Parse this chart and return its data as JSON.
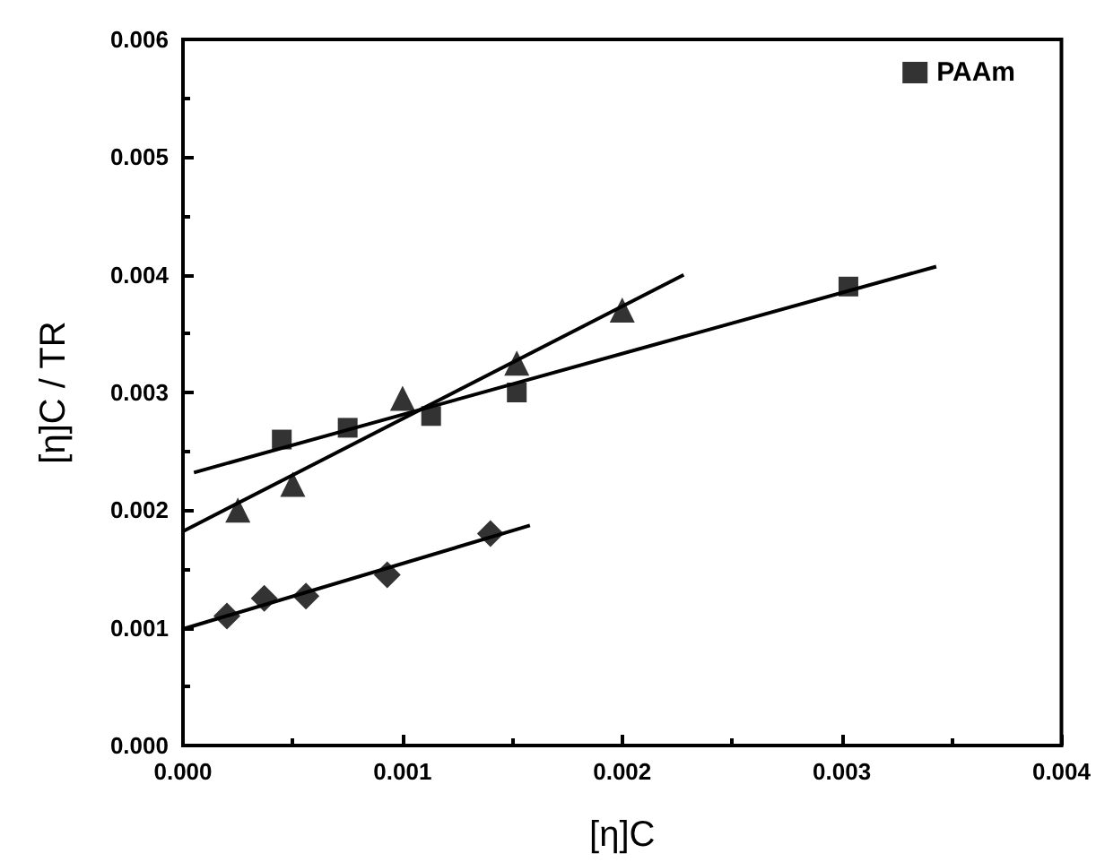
{
  "chart_data": {
    "type": "scatter",
    "xlabel": "[η]C",
    "ylabel": "[η]C / TR",
    "xlim": [
      0,
      0.004
    ],
    "ylim": [
      0,
      0.006
    ],
    "xticks": [
      {
        "value": 0,
        "label": "0.000"
      },
      {
        "value": 0.001,
        "label": "0.001"
      },
      {
        "value": 0.002,
        "label": "0.002"
      },
      {
        "value": 0.003,
        "label": "0.003"
      },
      {
        "value": 0.004,
        "label": "0.004"
      }
    ],
    "yticks": [
      {
        "value": 0,
        "label": "0.000"
      },
      {
        "value": 0.001,
        "label": "0.001"
      },
      {
        "value": 0.002,
        "label": "0.002"
      },
      {
        "value": 0.003,
        "label": "0.003"
      },
      {
        "value": 0.004,
        "label": "0.004"
      },
      {
        "value": 0.005,
        "label": "0.005"
      },
      {
        "value": 0.006,
        "label": "0.006"
      }
    ],
    "grid": false,
    "legend": "top right",
    "series": [
      {
        "name": "PAAm",
        "type": "scatter",
        "marker": "square",
        "color": "#000000",
        "x": [
          0.00045,
          0.00075,
          0.00113,
          0.00152,
          0.00303
        ],
        "values": [
          0.0026,
          0.0027,
          0.0028,
          0.003,
          0.0039
        ]
      },
      {
        "type": "scatter",
        "marker": "diamond",
        "color": "#000000",
        "x": [
          0.0002,
          0.00037,
          0.00056,
          0.00093,
          0.0014
        ],
        "values": [
          0.0011,
          0.00125,
          0.00127,
          0.00145,
          0.0018
        ]
      },
      {
        "type": "scatter",
        "marker": "triangle",
        "color": "#000000",
        "x": [
          0.00025,
          0.0005,
          0.001,
          0.00152,
          0.002
        ],
        "values": [
          0.002,
          0.00222,
          0.00295,
          0.00325,
          0.0037
        ]
      },
      {
        "type": "line",
        "marker": "none",
        "line_style": "solid",
        "color": "#000000",
        "x": [
          5e-05,
          0.00343
        ],
        "values": [
          0.00232,
          0.00407
        ]
      },
      {
        "type": "line",
        "marker": "none",
        "line_style": "solid",
        "color": "#000000",
        "x": [
          0,
          0.00158
        ],
        "values": [
          0.00099,
          0.00187
        ]
      },
      {
        "type": "line",
        "marker": "none",
        "line_style": "solid",
        "color": "#000000",
        "x": [
          0,
          0.00228
        ],
        "values": [
          0.00182,
          0.004
        ]
      }
    ]
  }
}
